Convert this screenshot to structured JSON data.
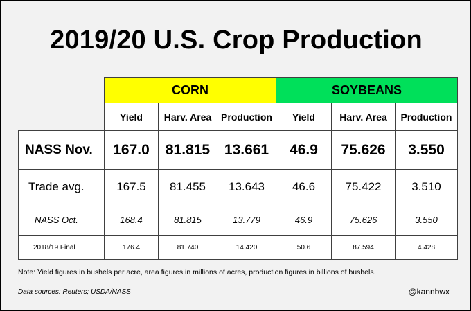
{
  "title": "2019/20 U.S. Crop Production",
  "colors": {
    "corn_header": "#ffff00",
    "soybeans_header": "#00e05a",
    "background": "#f2f2f2"
  },
  "groups": {
    "corn": "CORN",
    "soybeans": "SOYBEANS"
  },
  "columns": {
    "corn_yield": "Yield",
    "corn_harv_area": "Harv. Area",
    "corn_production": "Production",
    "soy_yield": "Yield",
    "soy_harv_area": "Harv. Area",
    "soy_production": "Production"
  },
  "rows": [
    {
      "label": "NASS Nov.",
      "values": [
        "167.0",
        "81.815",
        "13.661",
        "46.9",
        "75.626",
        "3.550"
      ]
    },
    {
      "label": "Trade avg.",
      "values": [
        "167.5",
        "81.455",
        "13.643",
        "46.6",
        "75.422",
        "3.510"
      ]
    },
    {
      "label": "NASS Oct.",
      "values": [
        "168.4",
        "81.815",
        "13.779",
        "46.9",
        "75.626",
        "3.550"
      ]
    },
    {
      "label": "2018/19 Final",
      "values": [
        "176.4",
        "81.740",
        "14.420",
        "50.6",
        "87.594",
        "4.428"
      ]
    }
  ],
  "note": "Note: Yield figures in bushels per acre, area figures in millions of acres, production figures in billions of bushels.",
  "sources": "Data sources: Reuters; USDA/NASS",
  "handle": "@kannbwx"
}
